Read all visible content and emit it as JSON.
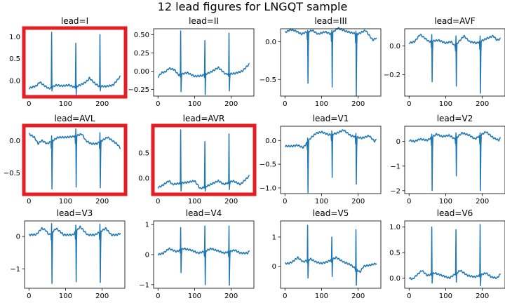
{
  "title": "12 lead figures for LNGQT sample",
  "colors": {
    "line": "#1f77b4",
    "highlight": "#e31e25",
    "axis": "#000000"
  },
  "chart_data": [
    {
      "type": "line",
      "title": "lead=I",
      "highlighted": true,
      "xlim": [
        -12,
        262
      ],
      "ylim": [
        -0.35,
        1.18
      ],
      "xticks": [
        0,
        100,
        200
      ],
      "yticks": [
        0.0,
        0.5,
        1.0
      ],
      "ytick_labels": [
        "0.0",
        "0.5",
        "1.0"
      ],
      "baseline": [
        [
          0,
          -0.17
        ],
        [
          20,
          -0.12
        ],
        [
          30,
          -0.03
        ],
        [
          40,
          -0.1
        ],
        [
          55,
          -0.18
        ],
        [
          75,
          -0.1
        ],
        [
          90,
          -0.12
        ],
        [
          110,
          -0.1
        ],
        [
          125,
          -0.15
        ],
        [
          150,
          -0.06
        ],
        [
          160,
          0.0
        ],
        [
          165,
          0.06
        ],
        [
          180,
          -0.06
        ],
        [
          190,
          -0.12
        ],
        [
          210,
          -0.13
        ],
        [
          230,
          -0.1
        ],
        [
          250,
          0.1
        ]
      ],
      "beats": [
        {
          "x": 62,
          "peak": 1.1,
          "trough": -0.23
        },
        {
          "x": 128,
          "peak": 0.85,
          "trough": -0.32
        },
        {
          "x": 194,
          "peak": 1.05,
          "trough": -0.23
        }
      ]
    },
    {
      "type": "line",
      "title": "lead=II",
      "highlighted": false,
      "xlim": [
        -12,
        262
      ],
      "ylim": [
        -0.34,
        0.58
      ],
      "xticks": [
        0,
        100,
        200
      ],
      "yticks": [
        -0.25,
        0.0,
        0.25,
        0.5
      ],
      "ytick_labels": [
        "−0.25",
        "0.00",
        "0.25",
        "0.50"
      ],
      "baseline": [
        [
          0,
          -0.08
        ],
        [
          10,
          -0.02
        ],
        [
          20,
          -0.01
        ],
        [
          30,
          0.04
        ],
        [
          45,
          0.02
        ],
        [
          56,
          -0.05
        ],
        [
          80,
          -0.02
        ],
        [
          100,
          -0.07
        ],
        [
          120,
          -0.06
        ],
        [
          145,
          -0.01
        ],
        [
          165,
          0.05
        ],
        [
          185,
          -0.04
        ],
        [
          210,
          -0.03
        ],
        [
          230,
          0.0
        ],
        [
          250,
          0.1
        ]
      ],
      "beats": [
        {
          "x": 62,
          "peak": 0.55,
          "trough": -0.28
        },
        {
          "x": 128,
          "peak": 0.42,
          "trough": -0.32
        },
        {
          "x": 194,
          "peak": 0.52,
          "trough": -0.27
        }
      ]
    },
    {
      "type": "line",
      "title": "lead=III",
      "highlighted": false,
      "xlim": [
        -12,
        262
      ],
      "ylim": [
        -0.72,
        0.17
      ],
      "xticks": [
        0,
        100,
        200
      ],
      "yticks": [
        -0.5,
        0.0
      ],
      "ytick_labels": [
        "−0.5",
        "0.0"
      ],
      "baseline": [
        [
          0,
          0.12
        ],
        [
          15,
          0.16
        ],
        [
          30,
          0.14
        ],
        [
          45,
          0.1
        ],
        [
          55,
          0.12
        ],
        [
          75,
          0.15
        ],
        [
          90,
          0.1
        ],
        [
          110,
          0.13
        ],
        [
          125,
          0.1
        ],
        [
          145,
          0.18
        ],
        [
          165,
          0.14
        ],
        [
          180,
          0.12
        ],
        [
          200,
          0.1
        ],
        [
          220,
          0.15
        ],
        [
          240,
          0.02
        ],
        [
          250,
          0.05
        ]
      ],
      "beats": [
        {
          "x": 62,
          "peak": 0.15,
          "trough": -0.55
        },
        {
          "x": 128,
          "peak": 0.15,
          "trough": -0.6
        },
        {
          "x": 194,
          "peak": 0.14,
          "trough": -0.72
        }
      ]
    },
    {
      "type": "line",
      "title": "lead=AVF",
      "highlighted": false,
      "xlim": [
        -12,
        262
      ],
      "ylim": [
        -0.35,
        0.12
      ],
      "xticks": [
        0,
        100,
        200
      ],
      "yticks": [
        -0.2,
        0.0
      ],
      "ytick_labels": [
        "−0.2",
        "0.0"
      ],
      "baseline": [
        [
          0,
          0.02
        ],
        [
          15,
          0.03
        ],
        [
          30,
          0.08
        ],
        [
          45,
          0.05
        ],
        [
          55,
          0.03
        ],
        [
          80,
          0.04
        ],
        [
          100,
          0.02
        ],
        [
          115,
          0.03
        ],
        [
          125,
          0.0
        ],
        [
          150,
          0.07
        ],
        [
          165,
          0.03
        ],
        [
          185,
          0.02
        ],
        [
          210,
          0.05
        ],
        [
          230,
          0.07
        ],
        [
          240,
          0.04
        ],
        [
          250,
          0.05
        ]
      ],
      "beats": [
        {
          "x": 62,
          "peak": 0.08,
          "trough": -0.25
        },
        {
          "x": 128,
          "peak": 0.07,
          "trough": -0.28
        },
        {
          "x": 194,
          "peak": 0.07,
          "trough": -0.33
        }
      ]
    },
    {
      "type": "line",
      "title": "lead=AVL",
      "highlighted": true,
      "xlim": [
        -12,
        262
      ],
      "ylim": [
        -0.82,
        0.22
      ],
      "xticks": [
        0,
        100,
        200
      ],
      "yticks": [
        -0.5,
        0.0
      ],
      "ytick_labels": [
        "−0.5",
        "0.0"
      ],
      "baseline": [
        [
          0,
          0.1
        ],
        [
          15,
          0.05
        ],
        [
          25,
          -0.05
        ],
        [
          35,
          0.0
        ],
        [
          50,
          -0.05
        ],
        [
          80,
          0.05
        ],
        [
          100,
          0.05
        ],
        [
          120,
          0.06
        ],
        [
          145,
          0.1
        ],
        [
          155,
          0.0
        ],
        [
          170,
          -0.05
        ],
        [
          185,
          -0.05
        ],
        [
          215,
          0.05
        ],
        [
          240,
          -0.05
        ],
        [
          250,
          -0.12
        ]
      ],
      "beats": [
        {
          "x": 62,
          "peak": 0.07,
          "trough": -0.75
        },
        {
          "x": 128,
          "peak": 0.18,
          "trough": -0.72
        },
        {
          "x": 194,
          "peak": 0.12,
          "trough": -0.73
        }
      ]
    },
    {
      "type": "line",
      "title": "lead=AVR",
      "highlighted": true,
      "xlim": [
        -12,
        262
      ],
      "ylim": [
        -0.3,
        1.02
      ],
      "xticks": [
        0,
        100,
        200
      ],
      "yticks": [
        0.0,
        0.5
      ],
      "ytick_labels": [
        "0.0",
        "0.5"
      ],
      "baseline": [
        [
          0,
          -0.18
        ],
        [
          10,
          -0.15
        ],
        [
          20,
          -0.1
        ],
        [
          30,
          -0.05
        ],
        [
          40,
          -0.12
        ],
        [
          55,
          -0.1
        ],
        [
          80,
          -0.08
        ],
        [
          100,
          -0.05
        ],
        [
          115,
          -0.2
        ],
        [
          125,
          -0.18
        ],
        [
          150,
          -0.1
        ],
        [
          165,
          -0.05
        ],
        [
          180,
          -0.12
        ],
        [
          205,
          -0.05
        ],
        [
          225,
          -0.12
        ],
        [
          240,
          -0.02
        ],
        [
          250,
          0.05
        ]
      ],
      "beats": [
        {
          "x": 62,
          "peak": 0.95,
          "trough": -0.25
        },
        {
          "x": 128,
          "peak": 0.72,
          "trough": -0.25
        },
        {
          "x": 194,
          "peak": 0.87,
          "trough": -0.22
        }
      ]
    },
    {
      "type": "line",
      "title": "lead=V1",
      "highlighted": false,
      "xlim": [
        -12,
        262
      ],
      "ylim": [
        -1.12,
        0.3
      ],
      "xticks": [
        0,
        100,
        200
      ],
      "yticks": [
        -1.0,
        -0.5,
        0.0
      ],
      "ytick_labels": [
        "−1.0",
        "−0.5",
        "0.0"
      ],
      "baseline": [
        [
          0,
          -0.12
        ],
        [
          20,
          -0.12
        ],
        [
          35,
          -0.1
        ],
        [
          50,
          -0.15
        ],
        [
          70,
          0.05
        ],
        [
          85,
          0.15
        ],
        [
          100,
          0.18
        ],
        [
          120,
          0.12
        ],
        [
          140,
          0.15
        ],
        [
          160,
          0.22
        ],
        [
          180,
          0.1
        ],
        [
          210,
          0.05
        ],
        [
          230,
          0.1
        ],
        [
          245,
          -0.02
        ],
        [
          250,
          0.02
        ]
      ],
      "beats": [
        {
          "x": 62,
          "peak": 0.05,
          "trough": -1.1
        },
        {
          "x": 128,
          "peak": 0.2,
          "trough": -0.78
        },
        {
          "x": 194,
          "peak": 0.15,
          "trough": -0.92
        }
      ]
    },
    {
      "type": "line",
      "title": "lead=V2",
      "highlighted": false,
      "xlim": [
        -12,
        262
      ],
      "ylim": [
        -2.12,
        0.62
      ],
      "xticks": [
        0,
        100,
        200
      ],
      "yticks": [
        -2,
        -1,
        0
      ],
      "ytick_labels": [
        "−2",
        "−1",
        "0"
      ],
      "baseline": [
        [
          0,
          0.05
        ],
        [
          15,
          0.0
        ],
        [
          30,
          0.1
        ],
        [
          50,
          0.05
        ],
        [
          75,
          0.3
        ],
        [
          90,
          0.2
        ],
        [
          110,
          0.25
        ],
        [
          125,
          0.1
        ],
        [
          145,
          0.35
        ],
        [
          165,
          0.25
        ],
        [
          180,
          0.1
        ],
        [
          210,
          0.4
        ],
        [
          230,
          0.15
        ],
        [
          245,
          0.05
        ],
        [
          250,
          0.15
        ]
      ],
      "beats": [
        {
          "x": 62,
          "peak": 0.3,
          "trough": -2.0
        },
        {
          "x": 128,
          "peak": 0.35,
          "trough": -1.4
        },
        {
          "x": 194,
          "peak": 0.35,
          "trough": -2.0
        }
      ]
    },
    {
      "type": "line",
      "title": "lead=V3",
      "highlighted": false,
      "xlim": [
        -12,
        262
      ],
      "ylim": [
        -1.6,
        0.48
      ],
      "xticks": [
        0,
        100,
        200
      ],
      "yticks": [
        -1,
        0
      ],
      "ytick_labels": [
        "−1",
        "0"
      ],
      "baseline": [
        [
          0,
          0.05
        ],
        [
          20,
          0.06
        ],
        [
          35,
          0.25
        ],
        [
          45,
          0.2
        ],
        [
          55,
          0.05
        ],
        [
          75,
          0.25
        ],
        [
          95,
          0.05
        ],
        [
          110,
          0.05
        ],
        [
          120,
          0.05
        ],
        [
          140,
          0.3
        ],
        [
          160,
          0.05
        ],
        [
          180,
          0.05
        ],
        [
          210,
          0.25
        ],
        [
          225,
          0.05
        ],
        [
          240,
          0.05
        ],
        [
          250,
          0.1
        ]
      ],
      "beats": [
        {
          "x": 62,
          "peak": 0.4,
          "trough": -1.45
        },
        {
          "x": 128,
          "peak": 0.35,
          "trough": -1.4
        },
        {
          "x": 194,
          "peak": 0.38,
          "trough": -1.42
        }
      ]
    },
    {
      "type": "line",
      "title": "lead=V4",
      "highlighted": false,
      "xlim": [
        -12,
        262
      ],
      "ylim": [
        -1.12,
        1.12
      ],
      "xticks": [
        0,
        100,
        200
      ],
      "yticks": [
        -1,
        0,
        1
      ],
      "ytick_labels": [
        "−1",
        "0",
        "1"
      ],
      "baseline": [
        [
          0,
          0.0
        ],
        [
          15,
          0.05
        ],
        [
          30,
          0.2
        ],
        [
          50,
          0.1
        ],
        [
          70,
          0.2
        ],
        [
          90,
          0.15
        ],
        [
          110,
          0.05
        ],
        [
          125,
          0.1
        ],
        [
          145,
          0.2
        ],
        [
          165,
          0.12
        ],
        [
          180,
          0.05
        ],
        [
          210,
          0.15
        ],
        [
          225,
          0.05
        ],
        [
          245,
          0.05
        ],
        [
          250,
          0.12
        ]
      ],
      "beats": [
        {
          "x": 62,
          "peak": 0.9,
          "trough": -0.6
        },
        {
          "x": 128,
          "peak": 0.95,
          "trough": -1.0
        },
        {
          "x": 194,
          "peak": 0.95,
          "trough": -1.02
        }
      ]
    },
    {
      "type": "line",
      "title": "lead=V5",
      "highlighted": false,
      "xlim": [
        -12,
        262
      ],
      "ylim": [
        -0.75,
        1.55
      ],
      "xticks": [
        0,
        100,
        200
      ],
      "yticks": [
        0,
        1
      ],
      "ytick_labels": [
        "0",
        "1"
      ],
      "baseline": [
        [
          0,
          0.1
        ],
        [
          10,
          0.1
        ],
        [
          20,
          0.15
        ],
        [
          35,
          0.3
        ],
        [
          50,
          0.15
        ],
        [
          70,
          0.25
        ],
        [
          85,
          0.15
        ],
        [
          100,
          0.1
        ],
        [
          115,
          0.15
        ],
        [
          140,
          0.3
        ],
        [
          160,
          0.15
        ],
        [
          180,
          0.05
        ],
        [
          205,
          -0.2
        ],
        [
          215,
          0.0
        ],
        [
          235,
          0.05
        ],
        [
          250,
          0.1
        ]
      ],
      "beats": [
        {
          "x": 62,
          "peak": 1.4,
          "trough": -0.4
        },
        {
          "x": 128,
          "peak": 1.0,
          "trough": -0.35
        },
        {
          "x": 194,
          "peak": 1.25,
          "trough": -0.65
        }
      ]
    },
    {
      "type": "line",
      "title": "lead=V6",
      "highlighted": false,
      "xlim": [
        -12,
        262
      ],
      "ylim": [
        -0.2,
        1.12
      ],
      "xticks": [
        0,
        100,
        200
      ],
      "yticks": [
        0.0,
        0.5,
        1.0
      ],
      "ytick_labels": [
        "0.0",
        "0.5",
        "1.0"
      ],
      "baseline": [
        [
          0,
          0.0
        ],
        [
          10,
          -0.02
        ],
        [
          20,
          0.05
        ],
        [
          35,
          0.15
        ],
        [
          50,
          0.05
        ],
        [
          70,
          0.1
        ],
        [
          90,
          0.05
        ],
        [
          110,
          0.0
        ],
        [
          120,
          0.05
        ],
        [
          140,
          0.15
        ],
        [
          160,
          0.05
        ],
        [
          180,
          0.02
        ],
        [
          210,
          0.1
        ],
        [
          225,
          0.02
        ],
        [
          240,
          0.0
        ],
        [
          250,
          0.08
        ]
      ],
      "beats": [
        {
          "x": 62,
          "peak": 1.0,
          "trough": -0.1
        },
        {
          "x": 128,
          "peak": 0.95,
          "trough": -0.08
        },
        {
          "x": 194,
          "peak": 1.05,
          "trough": -0.15
        }
      ]
    }
  ]
}
